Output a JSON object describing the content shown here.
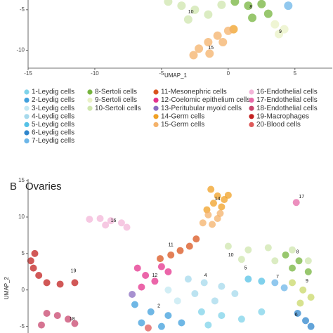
{
  "chart_data": [
    {
      "type": "scatter",
      "xlabel": "UMAP_1",
      "xlim": [
        -15,
        7.8
      ],
      "ylim": [
        -12.2,
        -3.8
      ],
      "xticks": [
        -15,
        -10,
        -5,
        0,
        5
      ],
      "yticks": [
        -10,
        -5
      ],
      "series": [
        {
          "name": "1-Leydig cells",
          "color": "#7fd3ea"
        },
        {
          "name": "2-Leydig cells",
          "color": "#3f9fdc"
        },
        {
          "name": "3-Leydig cells",
          "color": "#c3e8f2"
        },
        {
          "name": "4-Leydig cells",
          "color": "#a6d9ec"
        },
        {
          "name": "5-Leydig cells",
          "color": "#55c1e6"
        },
        {
          "name": "6-Leydig cells",
          "color": "#2f86cc"
        },
        {
          "name": "7-Leydig cells",
          "color": "#6cb6e8",
          "x": [
            4.5
          ],
          "y": [
            -4.5
          ]
        },
        {
          "name": "8-Sertoli cells",
          "color": "#76b43e",
          "x": [
            0.5,
            1.5,
            2.5,
            3.0,
            1.8
          ],
          "y": [
            -4.0,
            -4.5,
            -4.3,
            -5.5,
            -6.0
          ]
        },
        {
          "name": "9-Sertoli cells",
          "color": "#eaf2c6",
          "x": [
            3.5,
            4.2,
            3.8
          ],
          "y": [
            -6.8,
            -7.4,
            -8.0
          ]
        },
        {
          "name": "10-Sertoli cells",
          "color": "#cfe6ae",
          "x": [
            -4.5,
            -3.5,
            -2.5,
            -1.5,
            -3.0,
            -0.5
          ],
          "y": [
            -4.0,
            -4.5,
            -5.0,
            -5.6,
            -6.2,
            -4.4
          ]
        },
        {
          "name": "11-Mesonephric cells",
          "color": "#d9541e"
        },
        {
          "name": "12-Coelomic epithelium cells",
          "color": "#e4318c"
        },
        {
          "name": "13-Peritubular myoid cells",
          "color": "#8a6cc0"
        },
        {
          "name": "14-Germ cells",
          "color": "#f0a024",
          "x": [
            0.4
          ],
          "y": [
            -7.4
          ]
        },
        {
          "name": "15-Germ cells",
          "color": "#f4b26a",
          "x": [
            0.0,
            -0.8,
            -1.5,
            -2.2,
            -2.6,
            -1.4,
            -0.4
          ],
          "y": [
            -7.6,
            -8.2,
            -9.0,
            -9.8,
            -10.6,
            -10.4,
            -9.0
          ]
        },
        {
          "name": "16-Endothelial cells",
          "color": "#f3b5d8"
        },
        {
          "name": "17-Endothelial cells",
          "color": "#e66aa8"
        },
        {
          "name": "18-Endothelial cells",
          "color": "#c8466e"
        },
        {
          "name": "19-Macrophages",
          "color": "#c2201f"
        },
        {
          "name": "20-Blood cells",
          "color": "#de5a5a"
        }
      ],
      "annotations": [
        {
          "text": "10",
          "x": -2.8,
          "y": -5.3
        },
        {
          "text": "8",
          "x": 1.7,
          "y": -4.7
        },
        {
          "text": "9",
          "x": 3.9,
          "y": -7.7
        },
        {
          "text": "15",
          "x": -1.3,
          "y": -9.7
        }
      ]
    },
    {
      "type": "scatter",
      "panel": "B",
      "title": "Ovaries",
      "ylabel": "UMAP_2",
      "xlim": [
        -15,
        7.8
      ],
      "ylim": [
        -5.9,
        15.2
      ],
      "yticks": [
        -5,
        0,
        5,
        10,
        15
      ],
      "series": [
        {
          "color": "#7fd3ea",
          "x": [
            -2.0,
            -0.5,
            1.0,
            2.5,
            -1.5
          ],
          "y": [
            -3.0,
            -3.5,
            -4.0,
            -3.0,
            -4.8
          ]
        },
        {
          "color": "#3f9fdc",
          "x": [
            -7.0,
            -5.8,
            -4.5,
            -6.5,
            -3.5,
            -5.0
          ],
          "y": [
            -2.0,
            -3.0,
            -3.5,
            -4.5,
            -4.5,
            -5.0
          ]
        },
        {
          "color": "#c3e8f2",
          "x": [
            -4.5,
            -3.8
          ],
          "y": [
            0.0,
            -1.5
          ]
        },
        {
          "color": "#a6d9ec",
          "x": [
            -3.0,
            -1.8,
            -0.5,
            -2.5,
            -1.0,
            0.5
          ],
          "y": [
            1.5,
            1.0,
            0.5,
            -0.5,
            -1.5,
            -0.5
          ]
        },
        {
          "color": "#55c1e6",
          "x": [
            1.5,
            2.5
          ],
          "y": [
            1.5,
            1.2
          ]
        },
        {
          "color": "#2f86cc",
          "x": [
            5.2,
            5.8,
            6.2
          ],
          "y": [
            -3.2,
            -4.2,
            -5.0
          ]
        },
        {
          "color": "#6cb6e8",
          "x": [
            3.5,
            4.2
          ],
          "y": [
            1.0,
            0.3
          ]
        },
        {
          "color": "#76b43e",
          "x": [
            4.3,
            5.3,
            4.8,
            6.0
          ],
          "y": [
            4.8,
            4.0,
            3.0,
            2.5
          ]
        },
        {
          "color": "#c9d86a",
          "x": [
            4.8,
            5.6,
            6.2,
            5.4
          ],
          "y": [
            1.0,
            0.0,
            -1.0,
            -1.8
          ]
        },
        {
          "color": "#cfe6ae",
          "x": [
            0.0,
            1.5,
            3.0,
            4.8,
            6.0,
            1.0,
            3.5
          ],
          "y": [
            6.0,
            5.5,
            5.8,
            5.5,
            4.0,
            4.2,
            4.0
          ]
        },
        {
          "color": "#d9541e",
          "x": [
            -5.1,
            -4.3,
            -3.6,
            -2.9,
            -2.4
          ],
          "y": [
            4.3,
            4.8,
            5.4,
            6.0,
            7.0
          ]
        },
        {
          "color": "#e4318c",
          "x": [
            -6.8,
            -6.2,
            -5.5,
            -6.5,
            -5.0,
            -4.5
          ],
          "y": [
            3.0,
            2.0,
            1.2,
            0.4,
            3.2,
            2.5
          ]
        },
        {
          "color": "#8a6cc0",
          "x": [
            -7.2
          ],
          "y": [
            -0.6
          ]
        },
        {
          "color": "#f0a024",
          "x": [
            -1.3,
            -0.8,
            -0.3,
            -1.1,
            -0.5,
            -1.6,
            0.0
          ],
          "y": [
            13.8,
            12.9,
            12.4,
            11.9,
            11.4,
            11.0,
            13.0
          ]
        },
        {
          "color": "#f4b26a",
          "x": [
            -1.5,
            -0.8,
            -1.9,
            -1.2,
            -0.6
          ],
          "y": [
            10.3,
            9.8,
            9.2,
            9.0,
            10.5
          ]
        },
        {
          "color": "#f3b5d8",
          "x": [
            -10.4,
            -9.6,
            -8.8,
            -8.0,
            -9.2,
            -7.6
          ],
          "y": [
            9.7,
            9.8,
            9.5,
            9.2,
            8.9,
            8.6
          ]
        },
        {
          "color": "#e66aa8",
          "x": [
            5.1
          ],
          "y": [
            12.0
          ]
        },
        {
          "color": "#c8466e",
          "x": [
            -13.6,
            -12.8,
            -12.0,
            -11.5,
            -14.0
          ],
          "y": [
            -3.2,
            -3.5,
            -4.0,
            -4.6,
            -4.8
          ]
        },
        {
          "color": "#c2201f",
          "x": [
            -14.5,
            -14.8,
            -14.6,
            -14.2,
            -13.6,
            -12.6,
            -11.5
          ],
          "y": [
            5.0,
            4.0,
            3.0,
            2.0,
            1.0,
            0.8,
            1.0
          ]
        },
        {
          "color": "#de5a5a",
          "x": [
            -6.0
          ],
          "y": [
            -5.2
          ]
        }
      ],
      "annotations": [
        {
          "text": "14",
          "x": -0.8,
          "y": 12.5
        },
        {
          "text": "17",
          "x": 5.5,
          "y": 12.8
        },
        {
          "text": "16",
          "x": -8.6,
          "y": 9.5
        },
        {
          "text": "11",
          "x": -4.3,
          "y": 6.2
        },
        {
          "text": "19",
          "x": -11.6,
          "y": 2.6
        },
        {
          "text": "12",
          "x": -5.5,
          "y": 2.0
        },
        {
          "text": "10",
          "x": 0.2,
          "y": 4.8
        },
        {
          "text": "8",
          "x": 5.2,
          "y": 5.2
        },
        {
          "text": "5",
          "x": 1.3,
          "y": 3.0
        },
        {
          "text": "7",
          "x": 3.7,
          "y": 1.8
        },
        {
          "text": "4",
          "x": -1.7,
          "y": 2.0
        },
        {
          "text": "9",
          "x": 5.9,
          "y": 1.2
        },
        {
          "text": "2",
          "x": -5.2,
          "y": -2.2
        },
        {
          "text": "6",
          "x": 5.1,
          "y": -3.4
        },
        {
          "text": "18",
          "x": -11.7,
          "y": -4.0
        }
      ]
    }
  ]
}
